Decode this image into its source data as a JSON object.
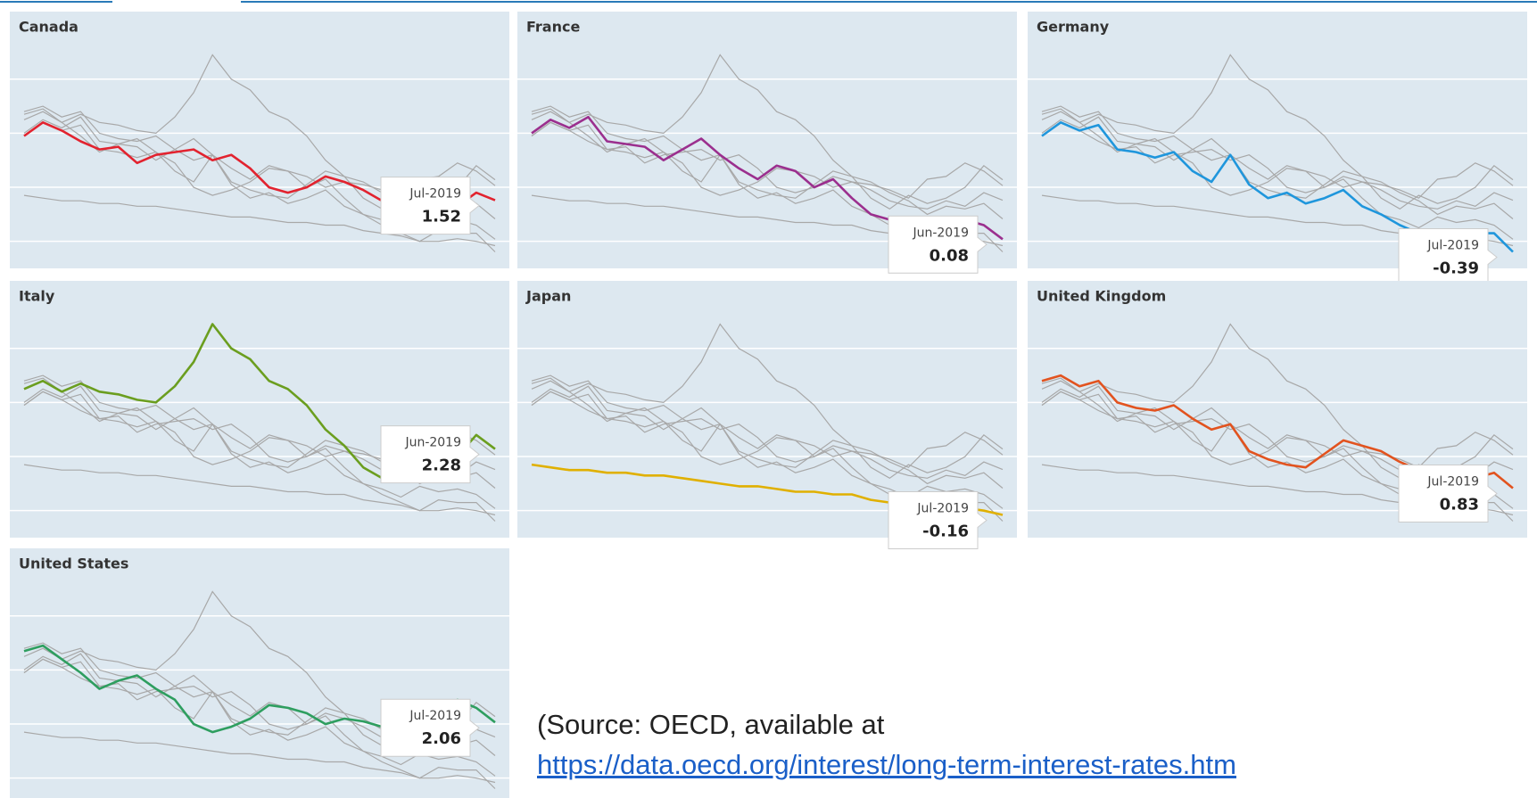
{
  "chart_data": {
    "type": "line",
    "grid": true,
    "ylim": [
      -1,
      8.5
    ],
    "yticks": [
      0,
      2,
      4,
      6
    ],
    "series": [
      {
        "name": "Canada",
        "color": "#e2232f",
        "date": "Jul-2019",
        "values": [
          3.9,
          4.4,
          4.1,
          3.7,
          3.4,
          3.5,
          2.9,
          3.2,
          3.3,
          3.4,
          3.0,
          3.2,
          2.7,
          2.0,
          1.8,
          2.0,
          2.4,
          2.2,
          1.9,
          1.5,
          1.3,
          1.2,
          1.5,
          1.3,
          1.8,
          1.52
        ]
      },
      {
        "name": "France",
        "color": "#9b2f8e",
        "date": "Jun-2019",
        "values": [
          4.0,
          4.5,
          4.2,
          4.6,
          3.7,
          3.6,
          3.5,
          3.0,
          3.4,
          3.8,
          3.2,
          2.7,
          2.3,
          2.8,
          2.6,
          2.0,
          2.3,
          1.6,
          1.0,
          0.8,
          0.5,
          0.9,
          0.7,
          0.8,
          0.6,
          0.08
        ]
      },
      {
        "name": "Germany",
        "color": "#1f96dc",
        "date": "Jul-2019",
        "values": [
          3.9,
          4.4,
          4.1,
          4.3,
          3.4,
          3.3,
          3.1,
          3.3,
          2.6,
          2.2,
          3.2,
          2.1,
          1.6,
          1.8,
          1.4,
          1.6,
          1.9,
          1.3,
          1.0,
          0.6,
          0.3,
          0.0,
          0.4,
          0.3,
          0.3,
          -0.39
        ]
      },
      {
        "name": "Italy",
        "color": "#6b9e1f",
        "date": "Jun-2019",
        "values": [
          4.5,
          4.8,
          4.4,
          4.7,
          4.4,
          4.3,
          4.1,
          4.0,
          4.6,
          5.5,
          6.9,
          6.0,
          5.6,
          4.8,
          4.5,
          3.9,
          3.0,
          2.4,
          1.6,
          1.2,
          1.7,
          1.4,
          1.6,
          2.0,
          2.8,
          2.28
        ]
      },
      {
        "name": "Japan",
        "color": "#e0b000",
        "date": "Jul-2019",
        "values": [
          1.7,
          1.6,
          1.5,
          1.5,
          1.4,
          1.4,
          1.3,
          1.3,
          1.2,
          1.1,
          1.0,
          0.9,
          0.9,
          0.8,
          0.7,
          0.7,
          0.6,
          0.6,
          0.4,
          0.3,
          0.2,
          0.0,
          0.0,
          0.1,
          0.0,
          -0.16
        ]
      },
      {
        "name": "United Kingdom",
        "color": "#e2531f",
        "date": "Jul-2019",
        "values": [
          4.8,
          5.0,
          4.6,
          4.8,
          4.0,
          3.8,
          3.7,
          3.9,
          3.4,
          3.0,
          3.2,
          2.2,
          1.9,
          1.7,
          1.6,
          2.1,
          2.6,
          2.4,
          2.2,
          1.8,
          1.5,
          1.0,
          1.3,
          1.2,
          1.4,
          0.83
        ]
      },
      {
        "name": "United States",
        "color": "#2e9e5f",
        "date": "Jul-2019",
        "values": [
          4.7,
          4.9,
          4.4,
          3.9,
          3.3,
          3.6,
          3.8,
          3.3,
          2.9,
          2.0,
          1.7,
          1.9,
          2.2,
          2.7,
          2.6,
          2.4,
          2.0,
          2.2,
          2.1,
          1.9,
          1.6,
          2.3,
          2.4,
          2.9,
          2.6,
          2.06
        ]
      }
    ],
    "source": "(Source: OECD, available at",
    "source_url": "https://data.oecd.org/interest/long-term-interest-rates.htm"
  }
}
